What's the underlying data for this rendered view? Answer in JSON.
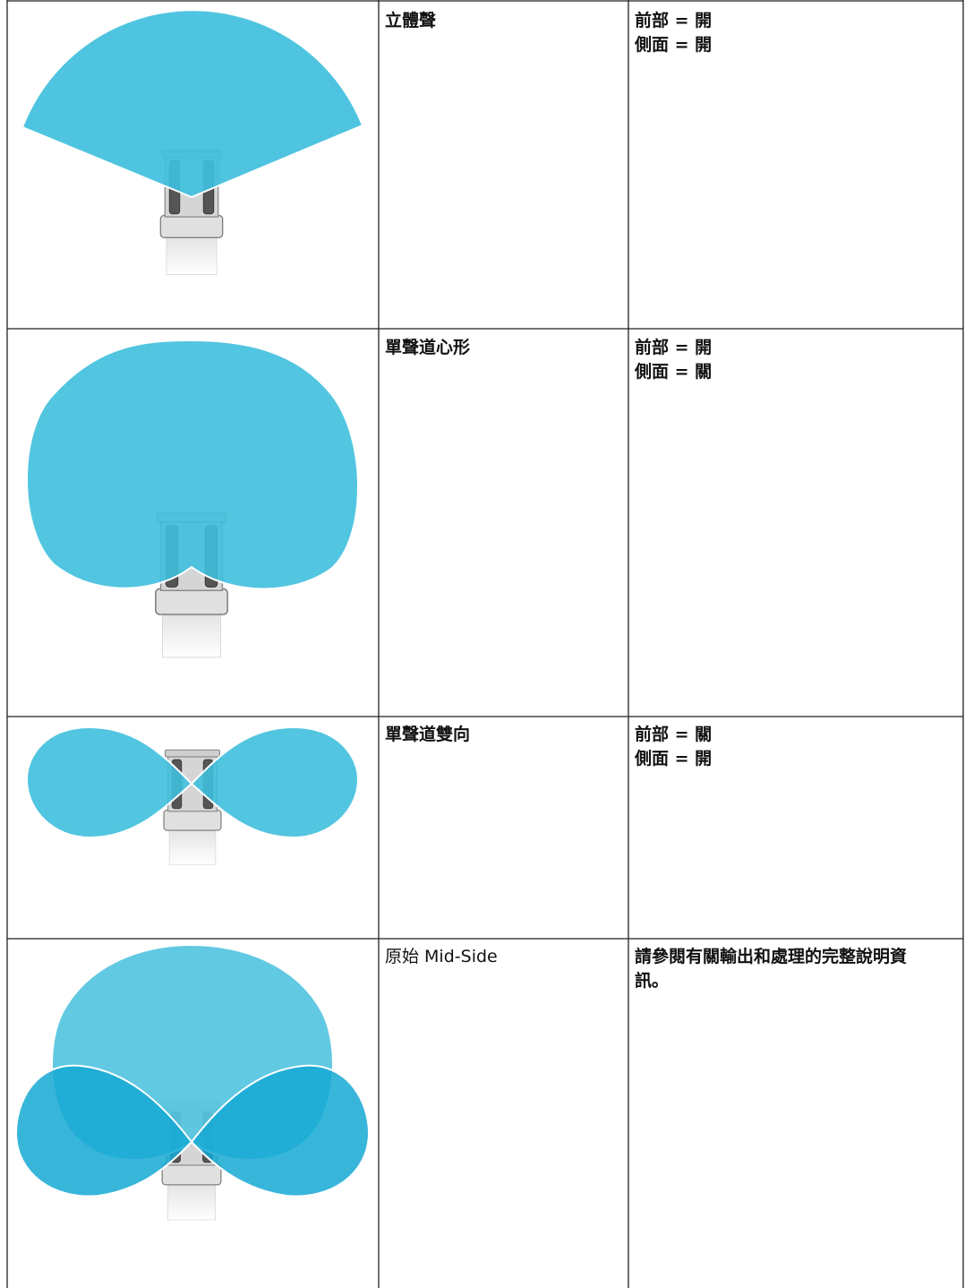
{
  "table": {
    "rows": [
      {
        "mode": "立體聲",
        "settings": [
          "前部 = 開",
          "側面 = 開"
        ]
      },
      {
        "mode": "單聲道心形",
        "settings": [
          "前部 = 開",
          "側面 = 關"
        ]
      },
      {
        "mode": "單聲道雙向",
        "settings": [
          "前部 = 關",
          "側面 = 開"
        ]
      },
      {
        "mode": "原始 Mid-Side",
        "settings": [
          "請參閱有關輸出和處理的完整說明資訊。"
        ]
      }
    ]
  }
}
